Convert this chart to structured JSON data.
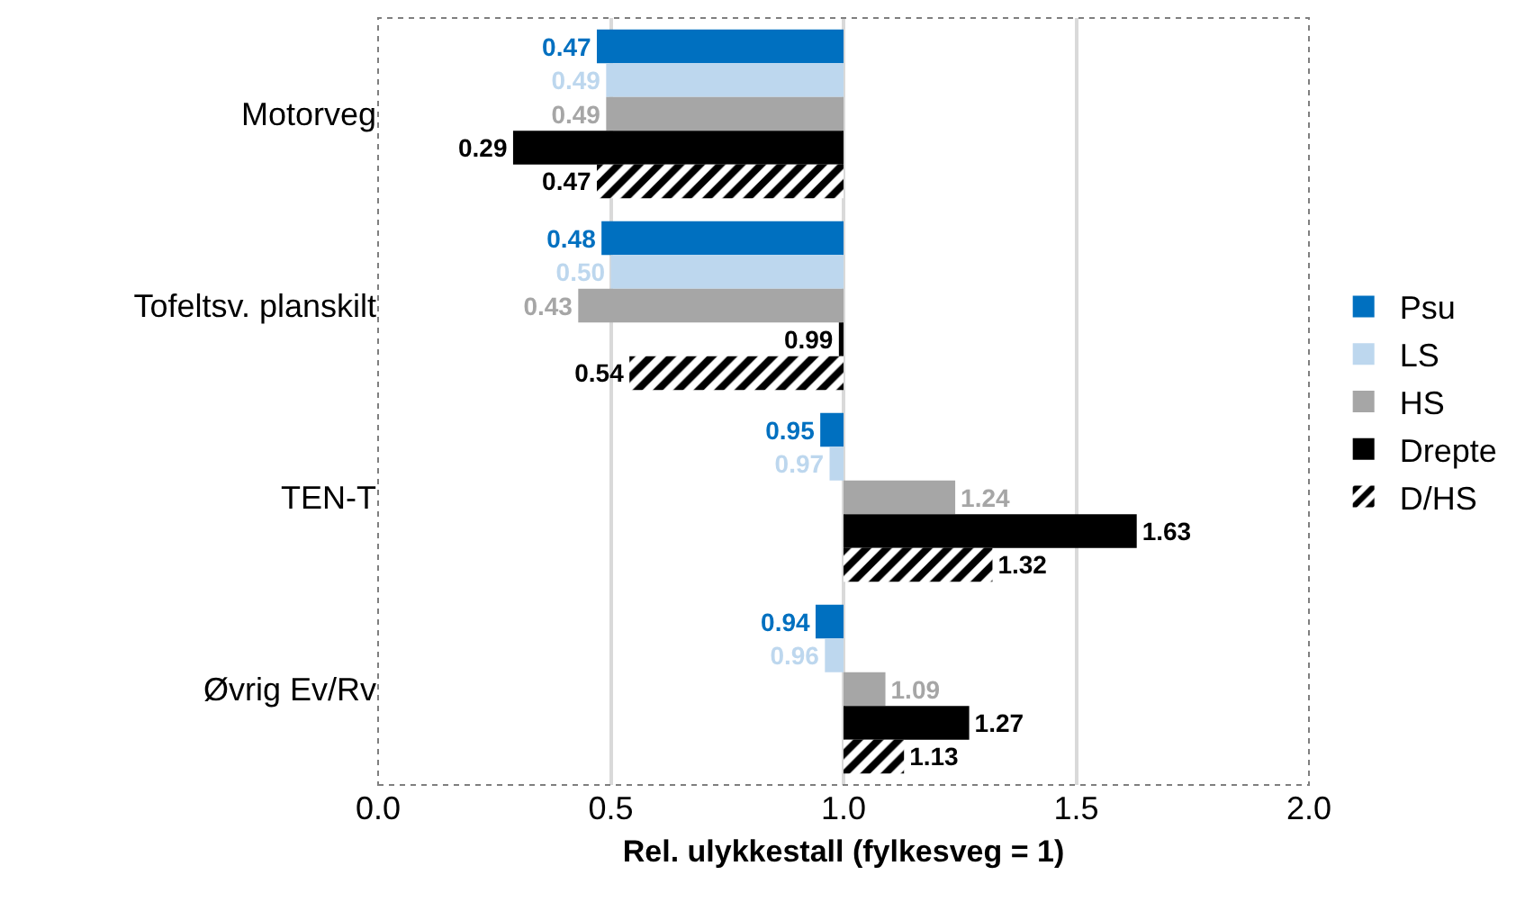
{
  "chart_data": {
    "type": "bar",
    "orientation": "horizontal",
    "xlabel": "Rel. ulykkestall (fylkesveg = 1)",
    "categories": [
      "Motorveg",
      "Tofeltsv. planskilt",
      "TEN-T",
      "Øvrig Ev/Rv"
    ],
    "series": [
      {
        "name": "Psu",
        "color": "#0070c0",
        "base": [
          1,
          1,
          1,
          1
        ],
        "values": [
          -0.53,
          -0.52,
          -0.05,
          -0.06
        ],
        "value_labels": [
          "0.47",
          "0.48",
          "0.95",
          "0.94"
        ]
      },
      {
        "name": "LS",
        "color": "#bdd7ee",
        "base": [
          1,
          1,
          1,
          1
        ],
        "values": [
          -0.51,
          -0.5,
          -0.03,
          -0.04
        ],
        "value_labels": [
          "0.49",
          "0.50",
          "0.97",
          "0.96"
        ]
      },
      {
        "name": "HS",
        "color": "#a6a6a6",
        "base": [
          1,
          1,
          1,
          1
        ],
        "values": [
          -0.51,
          -0.57,
          0.24,
          0.09
        ],
        "value_labels": [
          "0.49",
          "0.43",
          "1.24",
          "1.09"
        ]
      },
      {
        "name": "Drepte",
        "color": "#000000",
        "base": [
          1,
          1,
          1,
          1
        ],
        "values": [
          -0.71,
          -0.01,
          0.63,
          0.27
        ],
        "value_labels": [
          "0.29",
          "0.99",
          "1.63",
          "1.27"
        ]
      },
      {
        "name": "D/HS",
        "color": "#000000",
        "base": [
          1,
          1,
          1,
          1
        ],
        "values": [
          -0.53,
          -0.46,
          0.32,
          0.13
        ],
        "value_labels": [
          "0.47",
          "0.54",
          "1.32",
          "1.13"
        ]
      }
    ],
    "xlim": [
      0,
      2
    ],
    "xticks": [
      {
        "value": 0,
        "label": "0.0"
      },
      {
        "value": 0.5,
        "label": "0.5"
      },
      {
        "value": 1,
        "label": "1.0"
      },
      {
        "value": 1.5,
        "label": "1.5"
      },
      {
        "value": 2,
        "label": "2.0"
      }
    ],
    "grid": "x",
    "legend": "right"
  }
}
